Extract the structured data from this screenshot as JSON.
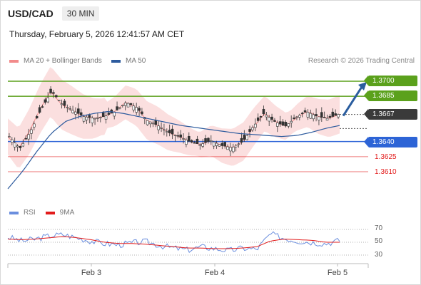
{
  "header": {
    "pair": "USD/CAD",
    "timeframe": "30 MIN",
    "datetime": "Thursday, February 5, 2026 12:41:57 AM CET"
  },
  "legend": {
    "bollinger_label": "MA 20 + Bollinger Bands",
    "ma50_label": "MA 50",
    "credit": "Research © 2026 Trading Central"
  },
  "colors": {
    "bollinger": "#f28b8b",
    "ma50": "#2d5b9e",
    "support": "#2d64d6",
    "resistance": "#5ba11c",
    "red_level": "#e21b1b",
    "current": "#3a3a3a",
    "arrow": "#2a5d9f",
    "rsi": "#6a8ede",
    "rsi_ma": "#e21b1b"
  },
  "levels": {
    "r2": "1.3700",
    "r1": "1.3685",
    "current": "1.3667",
    "s1": "1.3640",
    "s2": "1.3625",
    "s3": "1.3610"
  },
  "rsi_panel": {
    "rsi_label": "RSI",
    "ma_label": "9MA",
    "y_ticks": [
      "70",
      "50",
      "30"
    ]
  },
  "x_axis": {
    "labels": [
      "Feb 3",
      "Feb 4",
      "Feb 5"
    ]
  },
  "chart_data": {
    "type": "line",
    "title": "USD/CAD 30 MIN",
    "y_range": [
      1.358,
      1.371
    ],
    "levels": [
      1.37,
      1.3685,
      1.3667,
      1.364,
      1.3625,
      1.361
    ],
    "price_path": [
      1.3645,
      1.3633,
      1.365,
      1.3672,
      1.369,
      1.3677,
      1.3671,
      1.3665,
      1.3663,
      1.3665,
      1.367,
      1.3679,
      1.3674,
      1.3661,
      1.3656,
      1.3649,
      1.3645,
      1.364,
      1.3637,
      1.3641,
      1.3636,
      1.3634,
      1.364,
      1.3655,
      1.3668,
      1.366,
      1.3655,
      1.3664,
      1.367,
      1.3665,
      1.3663,
      1.3667
    ],
    "ma50_path": [
      1.3593,
      1.361,
      1.363,
      1.3648,
      1.366,
      1.3665,
      1.3668,
      1.367,
      1.3668,
      1.3665,
      1.3662,
      1.3659,
      1.3656,
      1.3654,
      1.3652,
      1.365,
      1.3648,
      1.3647,
      1.3646,
      1.3645,
      1.3646,
      1.3649,
      1.3653,
      1.3656
    ],
    "rsi_path": [
      58,
      52,
      55,
      60,
      62,
      57,
      52,
      48,
      46,
      49,
      51,
      45,
      41,
      38,
      43,
      40,
      37,
      41,
      39,
      63,
      56,
      52,
      50,
      48,
      53
    ],
    "rsi_ma_path": [
      55,
      54,
      55,
      57,
      59,
      57,
      54,
      50,
      48,
      48,
      47,
      45,
      43,
      41,
      41,
      40,
      40,
      41,
      43,
      52,
      55,
      54,
      53,
      50,
      50
    ],
    "rsi_y_range": [
      20,
      80
    ],
    "x_ticks": [
      "Feb 3",
      "Feb 4",
      "Feb 5"
    ],
    "arrow_target": 1.37
  }
}
